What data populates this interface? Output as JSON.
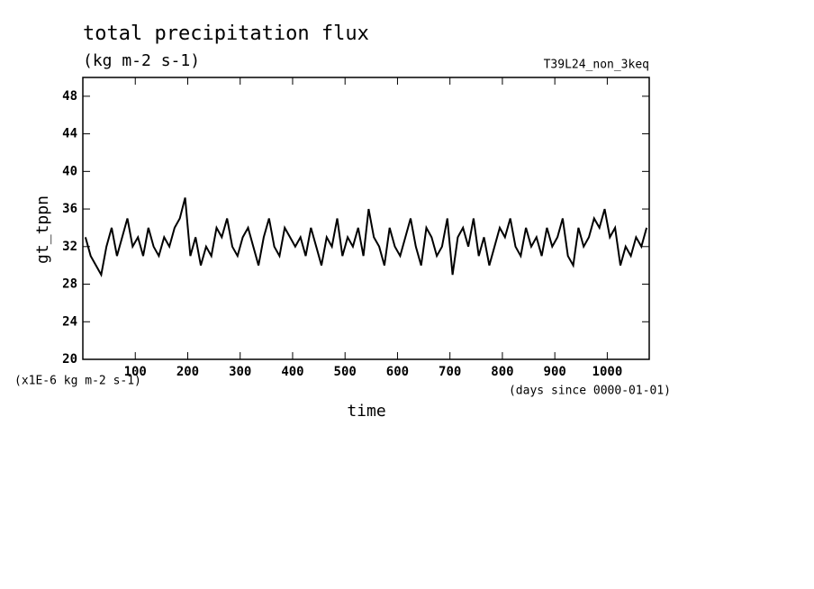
{
  "chart_data": {
    "type": "line",
    "title": "total precipitation flux",
    "subtitle": "(kg m-2 s-1)",
    "annotation": "T39L24_non_3keq",
    "y_label": "gt_tppn",
    "x_label": "time",
    "y_unit": "(x1E-6 kg m-2 s-1)",
    "x_unit": "(days since 0000-01-01)",
    "x": [
      5,
      15,
      25,
      35,
      45,
      55,
      65,
      75,
      85,
      95,
      105,
      115,
      125,
      135,
      145,
      155,
      165,
      175,
      185,
      195,
      205,
      215,
      225,
      235,
      245,
      255,
      265,
      275,
      285,
      295,
      305,
      315,
      325,
      335,
      345,
      355,
      365,
      375,
      385,
      395,
      405,
      415,
      425,
      435,
      445,
      455,
      465,
      475,
      485,
      495,
      505,
      515,
      525,
      535,
      545,
      555,
      565,
      575,
      585,
      595,
      605,
      615,
      625,
      635,
      645,
      655,
      665,
      675,
      685,
      695,
      705,
      715,
      725,
      735,
      745,
      755,
      765,
      775,
      785,
      795,
      805,
      815,
      825,
      835,
      845,
      855,
      865,
      875,
      885,
      895,
      905,
      915,
      925,
      935,
      945,
      955,
      965,
      975,
      985,
      995,
      1005,
      1015,
      1025,
      1035,
      1045,
      1055,
      1065,
      1075
    ],
    "series": [
      {
        "name": "gt_tppn",
        "color": "#000000",
        "values": [
          33,
          31,
          30,
          29,
          32,
          34,
          31,
          33,
          35,
          32,
          33,
          31,
          34,
          32,
          31,
          33,
          32,
          34,
          35,
          37.2,
          31,
          33,
          30,
          32,
          31,
          34,
          33,
          35,
          32,
          31,
          33,
          34,
          32,
          30,
          33,
          35,
          32,
          31,
          34,
          33,
          32,
          33,
          31,
          34,
          32,
          30,
          33,
          32,
          35,
          31,
          33,
          32,
          34,
          31,
          36,
          33,
          32,
          30,
          34,
          32,
          31,
          33,
          35,
          32,
          30,
          34,
          33,
          31,
          32,
          35,
          29,
          33,
          34,
          32,
          35,
          31,
          33,
          30,
          32,
          34,
          33,
          35,
          32,
          31,
          34,
          32,
          33,
          31,
          34,
          32,
          33,
          35,
          31,
          30,
          34,
          32,
          33,
          35,
          34,
          36,
          33,
          34,
          30,
          32,
          31,
          33,
          32,
          34
        ]
      }
    ],
    "xlim": [
      0,
      1080
    ],
    "ylim": [
      20,
      50
    ],
    "xticks": [
      100,
      200,
      300,
      400,
      500,
      600,
      700,
      800,
      900,
      1000
    ],
    "yticks": [
      20,
      24,
      28,
      32,
      36,
      40,
      44,
      48
    ]
  }
}
